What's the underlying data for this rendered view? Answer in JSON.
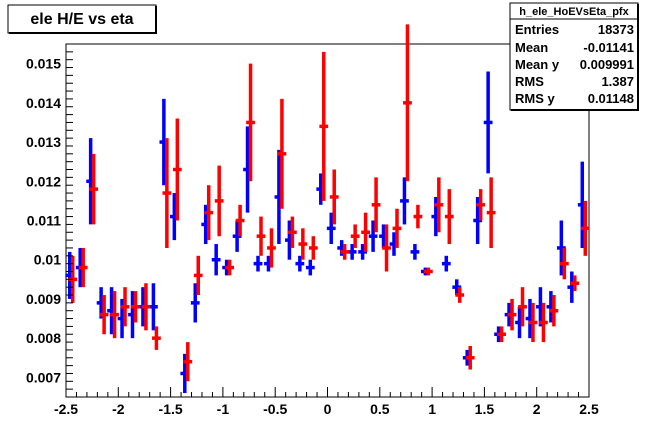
{
  "chart_data": {
    "type": "scatter",
    "title": "ele H/E vs eta",
    "xlabel": "",
    "ylabel": "",
    "xlim": [
      -2.5,
      2.5
    ],
    "ylim": [
      0.0065,
      0.0155
    ],
    "x_ticks": [
      "-2.5",
      "-2",
      "-1.5",
      "-1",
      "-0.5",
      "0",
      "0.5",
      "1",
      "1.5",
      "2",
      "2.5"
    ],
    "y_ticks": [
      "0.007",
      "0.008",
      "0.009",
      "0.01",
      "0.011",
      "0.012",
      "0.013",
      "0.014",
      "0.015"
    ],
    "grid": false,
    "stats_box": {
      "title": "h_ele_HoEVsEta_pfx",
      "rows": [
        {
          "label": "Entries",
          "value": "18373"
        },
        {
          "label": "Mean",
          "value": "-0.01141"
        },
        {
          "label": "Mean y",
          "value": "0.009991"
        },
        {
          "label": "RMS",
          "value": "1.387"
        },
        {
          "label": "RMS y",
          "value": "0.01148"
        }
      ]
    },
    "series": [
      {
        "color": "#0000ff",
        "points": [
          {
            "x": -2.45,
            "y": 0.0096,
            "err": 0.0006
          },
          {
            "x": -2.35,
            "y": 0.0098,
            "err": 0.0005
          },
          {
            "x": -2.25,
            "y": 0.012,
            "err": 0.0011
          },
          {
            "x": -2.15,
            "y": 0.0089,
            "err": 0.0004
          },
          {
            "x": -2.05,
            "y": 0.0087,
            "err": 0.0006
          },
          {
            "x": -1.95,
            "y": 0.0085,
            "err": 0.0005
          },
          {
            "x": -1.85,
            "y": 0.0086,
            "err": 0.0006
          },
          {
            "x": -1.75,
            "y": 0.0088,
            "err": 0.0005
          },
          {
            "x": -1.65,
            "y": 0.0088,
            "err": 0.0006
          },
          {
            "x": -1.55,
            "y": 0.013,
            "err": 0.0011
          },
          {
            "x": -1.45,
            "y": 0.0111,
            "err": 0.0006
          },
          {
            "x": -1.35,
            "y": 0.0071,
            "err": 0.0005
          },
          {
            "x": -1.25,
            "y": 0.0089,
            "err": 0.0005
          },
          {
            "x": -1.15,
            "y": 0.0109,
            "err": 0.0005
          },
          {
            "x": -1.05,
            "y": 0.01,
            "err": 0.0004
          },
          {
            "x": -0.95,
            "y": 0.0098,
            "err": 0.0002
          },
          {
            "x": -0.85,
            "y": 0.0106,
            "err": 0.0004
          },
          {
            "x": -0.75,
            "y": 0.0123,
            "err": 0.0011
          },
          {
            "x": -0.65,
            "y": 0.0099,
            "err": 0.0002
          },
          {
            "x": -0.55,
            "y": 0.0099,
            "err": 0.0002
          },
          {
            "x": -0.45,
            "y": 0.0116,
            "err": 0.0012
          },
          {
            "x": -0.35,
            "y": 0.0105,
            "err": 0.0005
          },
          {
            "x": -0.25,
            "y": 0.0099,
            "err": 0.0002
          },
          {
            "x": -0.15,
            "y": 0.0098,
            "err": 0.0002
          },
          {
            "x": -0.05,
            "y": 0.0118,
            "err": 0.0004
          },
          {
            "x": 0.05,
            "y": 0.0108,
            "err": 0.0004
          },
          {
            "x": 0.15,
            "y": 0.0103,
            "err": 0.0002
          },
          {
            "x": 0.25,
            "y": 0.0102,
            "err": 0.0002
          },
          {
            "x": 0.35,
            "y": 0.0102,
            "err": 0.0002
          },
          {
            "x": 0.45,
            "y": 0.0106,
            "err": 0.0004
          },
          {
            "x": 0.55,
            "y": 0.0106,
            "err": 0.0003
          },
          {
            "x": 0.65,
            "y": 0.0104,
            "err": 0.0003
          },
          {
            "x": 0.75,
            "y": 0.0115,
            "err": 0.0006
          },
          {
            "x": 0.85,
            "y": 0.0102,
            "err": 0.0002
          },
          {
            "x": 0.95,
            "y": 0.0097,
            "err": 0.0001
          },
          {
            "x": 1.05,
            "y": 0.0111,
            "err": 0.0005
          },
          {
            "x": 1.15,
            "y": 0.0099,
            "err": 0.0002
          },
          {
            "x": 1.25,
            "y": 0.0093,
            "err": 0.0002
          },
          {
            "x": 1.35,
            "y": 0.0075,
            "err": 0.0002
          },
          {
            "x": 1.45,
            "y": 0.011,
            "err": 0.0006
          },
          {
            "x": 1.55,
            "y": 0.0135,
            "err": 0.0013
          },
          {
            "x": 1.65,
            "y": 0.0081,
            "err": 0.0002
          },
          {
            "x": 1.75,
            "y": 0.0086,
            "err": 0.0003
          },
          {
            "x": 1.85,
            "y": 0.0084,
            "err": 0.0004
          },
          {
            "x": 1.95,
            "y": 0.0085,
            "err": 0.0005
          },
          {
            "x": 2.05,
            "y": 0.0088,
            "err": 0.0005
          },
          {
            "x": 2.15,
            "y": 0.0088,
            "err": 0.0004
          },
          {
            "x": 2.25,
            "y": 0.0103,
            "err": 0.0007
          },
          {
            "x": 2.35,
            "y": 0.0093,
            "err": 0.0004
          },
          {
            "x": 2.45,
            "y": 0.0114,
            "err": 0.0011
          }
        ]
      },
      {
        "color": "#ff0000",
        "points": [
          {
            "x": -2.45,
            "y": 0.0095,
            "err": 0.0006
          },
          {
            "x": -2.35,
            "y": 0.0098,
            "err": 0.0005
          },
          {
            "x": -2.25,
            "y": 0.0118,
            "err": 0.0009
          },
          {
            "x": -2.15,
            "y": 0.0086,
            "err": 0.0005
          },
          {
            "x": -2.05,
            "y": 0.0086,
            "err": 0.0006
          },
          {
            "x": -1.95,
            "y": 0.0088,
            "err": 0.0005
          },
          {
            "x": -1.85,
            "y": 0.0088,
            "err": 0.0004
          },
          {
            "x": -1.75,
            "y": 0.0088,
            "err": 0.0006
          },
          {
            "x": -1.65,
            "y": 0.008,
            "err": 0.0003
          },
          {
            "x": -1.55,
            "y": 0.0117,
            "err": 0.0014
          },
          {
            "x": -1.45,
            "y": 0.0123,
            "err": 0.0013
          },
          {
            "x": -1.35,
            "y": 0.0074,
            "err": 0.0005
          },
          {
            "x": -1.25,
            "y": 0.0096,
            "err": 0.0005
          },
          {
            "x": -1.15,
            "y": 0.0112,
            "err": 0.0007
          },
          {
            "x": -1.05,
            "y": 0.0115,
            "err": 0.0009
          },
          {
            "x": -0.95,
            "y": 0.0098,
            "err": 0.0002
          },
          {
            "x": -0.85,
            "y": 0.011,
            "err": 0.0004
          },
          {
            "x": -0.75,
            "y": 0.0135,
            "err": 0.0015
          },
          {
            "x": -0.65,
            "y": 0.0106,
            "err": 0.0005
          },
          {
            "x": -0.55,
            "y": 0.0103,
            "err": 0.0005
          },
          {
            "x": -0.45,
            "y": 0.0127,
            "err": 0.0014
          },
          {
            "x": -0.35,
            "y": 0.0107,
            "err": 0.0004
          },
          {
            "x": -0.25,
            "y": 0.0104,
            "err": 0.0004
          },
          {
            "x": -0.15,
            "y": 0.0103,
            "err": 0.0003
          },
          {
            "x": -0.05,
            "y": 0.0134,
            "err": 0.0019
          },
          {
            "x": 0.05,
            "y": 0.0116,
            "err": 0.0007
          },
          {
            "x": 0.15,
            "y": 0.0102,
            "err": 0.0002
          },
          {
            "x": 0.25,
            "y": 0.0106,
            "err": 0.0003
          },
          {
            "x": 0.35,
            "y": 0.0107,
            "err": 0.0005
          },
          {
            "x": 0.45,
            "y": 0.0114,
            "err": 0.0007
          },
          {
            "x": 0.55,
            "y": 0.0103,
            "err": 0.0006
          },
          {
            "x": 0.65,
            "y": 0.0108,
            "err": 0.0005
          },
          {
            "x": 0.75,
            "y": 0.014,
            "err": 0.002
          },
          {
            "x": 0.85,
            "y": 0.0111,
            "err": 0.0003
          },
          {
            "x": 0.95,
            "y": 0.0097,
            "err": 0.0001
          },
          {
            "x": 1.05,
            "y": 0.0114,
            "err": 0.0007
          },
          {
            "x": 1.15,
            "y": 0.0111,
            "err": 0.0007
          },
          {
            "x": 1.25,
            "y": 0.0091,
            "err": 0.0002
          },
          {
            "x": 1.35,
            "y": 0.0075,
            "err": 0.0003
          },
          {
            "x": 1.45,
            "y": 0.0114,
            "err": 0.0004
          },
          {
            "x": 1.55,
            "y": 0.0112,
            "err": 0.0009
          },
          {
            "x": 1.65,
            "y": 0.0081,
            "err": 0.0002
          },
          {
            "x": 1.75,
            "y": 0.0086,
            "err": 0.0004
          },
          {
            "x": 1.85,
            "y": 0.0088,
            "err": 0.0005
          },
          {
            "x": 1.95,
            "y": 0.0084,
            "err": 0.0005
          },
          {
            "x": 2.05,
            "y": 0.0084,
            "err": 0.0005
          },
          {
            "x": 2.15,
            "y": 0.0087,
            "err": 0.0004
          },
          {
            "x": 2.25,
            "y": 0.0099,
            "err": 0.0004
          },
          {
            "x": 2.35,
            "y": 0.0094,
            "err": 0.0002
          },
          {
            "x": 2.45,
            "y": 0.0108,
            "err": 0.0007
          }
        ]
      }
    ]
  }
}
